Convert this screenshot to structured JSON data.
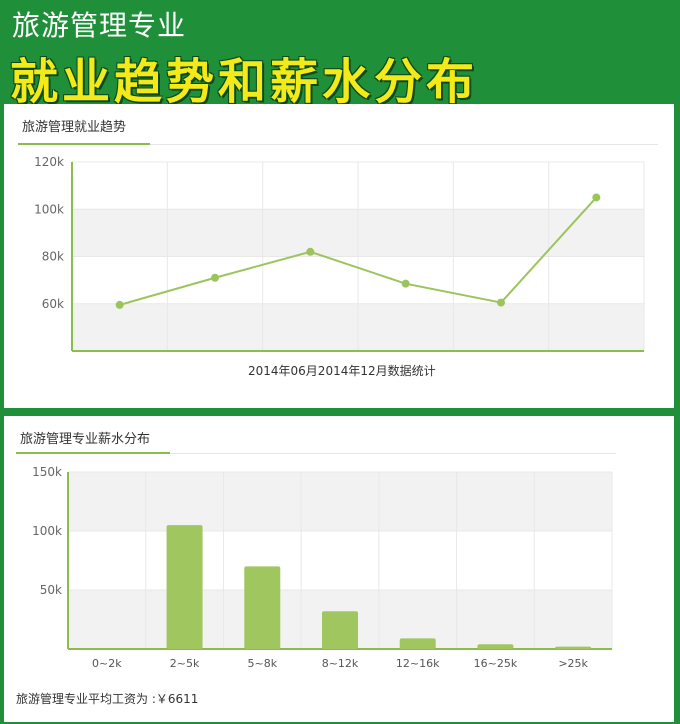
{
  "banner": {
    "subtitle": "旅游管理专业",
    "title": "就业趋势和薪水分布"
  },
  "trend_panel": {
    "title": "旅游管理就业趋势",
    "caption": "2014年06月2014年12月数据统计"
  },
  "salary_panel": {
    "title": "旅游管理专业薪水分布",
    "average_note": "旅游管理专业平均工资为 :￥6611"
  },
  "colors": {
    "line": "#9cc45c",
    "bar": "#a0c75f",
    "band": "#f2f2f2",
    "axis": "#8bbd4a",
    "banner_title": "#f4ea1a",
    "banner_bg": "#1f8f3a"
  },
  "chart_data": [
    {
      "type": "line",
      "title": "旅游管理就业趋势",
      "xlabel": "2014年06月2014年12月数据统计",
      "ylabel": "",
      "ylim": [
        40,
        120
      ],
      "yticks": [
        60,
        80,
        100,
        120
      ],
      "ytick_labels": [
        "60k",
        "80k",
        "100k",
        "120k"
      ],
      "series": [
        {
          "values": [
            59.5,
            71,
            82,
            68.5,
            60.5,
            105
          ]
        }
      ],
      "grid": true,
      "legend": "none"
    },
    {
      "type": "bar",
      "title": "旅游管理专业薪水分布",
      "categories": [
        "0~2k",
        "2~5k",
        "5~8k",
        "8~12k",
        "12~16k",
        "16~25k",
        ">25k"
      ],
      "values": [
        0,
        105,
        70,
        32,
        9,
        4,
        2
      ],
      "xlabel": "",
      "ylabel": "",
      "ylim": [
        0,
        150
      ],
      "yticks": [
        50,
        100,
        150
      ],
      "ytick_labels": [
        "50k",
        "100k",
        "150k"
      ],
      "grid": true,
      "legend": "none"
    }
  ]
}
